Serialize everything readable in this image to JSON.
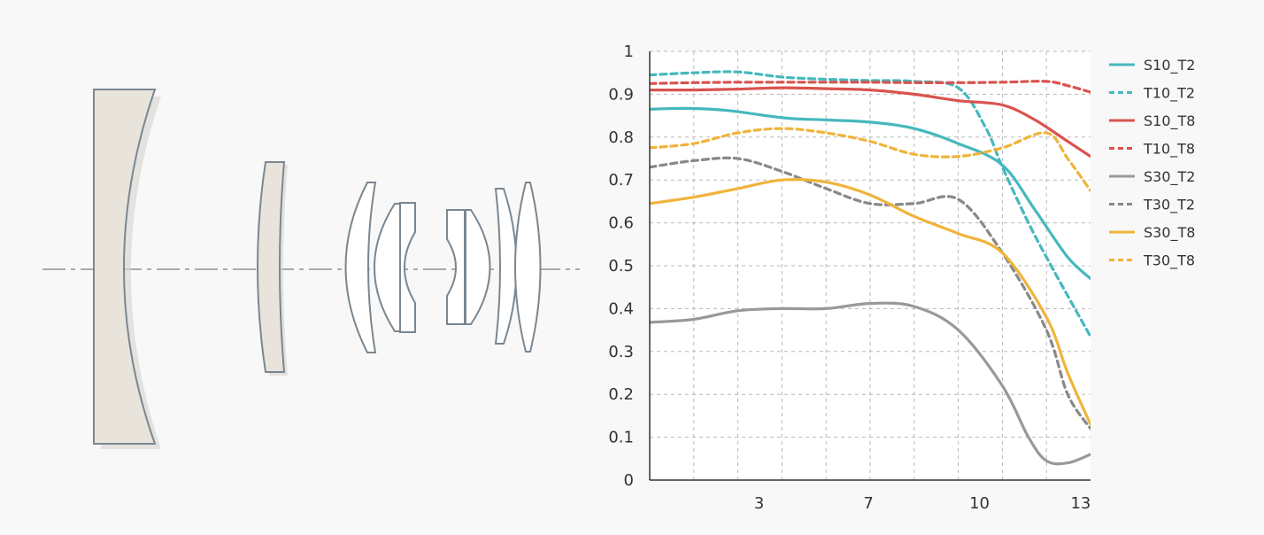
{
  "lens_diagram": {
    "name": "optical-layout",
    "element_fill": "#e8e4dc",
    "element_stroke": "#7a8791",
    "glass_fill": "#ffffff",
    "axis_color": "#9a9a9a"
  },
  "chart_data": {
    "type": "line",
    "title": "",
    "xlabel": "",
    "ylabel": "",
    "xlim": [
      0,
      13.5
    ],
    "ylim": [
      0,
      1
    ],
    "grid": true,
    "legend_position": "right",
    "x_grid": [
      1.35,
      2.7,
      4.05,
      5.4,
      6.75,
      8.1,
      9.45,
      10.8,
      12.15
    ],
    "y_ticks": [
      0,
      0.1,
      0.2,
      0.3,
      0.4,
      0.5,
      0.6,
      0.7,
      0.8,
      0.9,
      1
    ],
    "x_tick_labels": [
      {
        "value": 3.35,
        "label": "3"
      },
      {
        "value": 6.7,
        "label": "7"
      },
      {
        "value": 10.1,
        "label": "10"
      },
      {
        "value": 13.2,
        "label": "13"
      }
    ],
    "series": [
      {
        "name": "S10_T2",
        "color": "#46b8bd",
        "dashed": false,
        "points": [
          [
            0,
            0.865
          ],
          [
            1.1,
            0.867
          ],
          [
            2.4,
            0.862
          ],
          [
            4.1,
            0.845
          ],
          [
            5.4,
            0.84
          ],
          [
            6.75,
            0.835
          ],
          [
            8.1,
            0.82
          ],
          [
            9.45,
            0.785
          ],
          [
            10.8,
            0.735
          ],
          [
            11.8,
            0.63
          ],
          [
            12.8,
            0.52
          ],
          [
            13.5,
            0.47
          ]
        ]
      },
      {
        "name": "T10_T2",
        "color": "#46b8bd",
        "dashed": true,
        "points": [
          [
            0,
            0.945
          ],
          [
            1.35,
            0.95
          ],
          [
            2.7,
            0.952
          ],
          [
            4.05,
            0.94
          ],
          [
            5.4,
            0.935
          ],
          [
            6.75,
            0.932
          ],
          [
            8.1,
            0.93
          ],
          [
            9.45,
            0.915
          ],
          [
            10.3,
            0.82
          ],
          [
            10.8,
            0.73
          ],
          [
            11.6,
            0.6
          ],
          [
            12.15,
            0.52
          ],
          [
            12.8,
            0.43
          ],
          [
            13.5,
            0.335
          ]
        ]
      },
      {
        "name": "S10_T8",
        "color": "#d9534f",
        "dashed": false,
        "points": [
          [
            0,
            0.91
          ],
          [
            1.35,
            0.91
          ],
          [
            2.7,
            0.912
          ],
          [
            4.05,
            0.915
          ],
          [
            5.4,
            0.913
          ],
          [
            6.75,
            0.91
          ],
          [
            8.1,
            0.9
          ],
          [
            9.45,
            0.885
          ],
          [
            10.8,
            0.875
          ],
          [
            11.8,
            0.84
          ],
          [
            12.8,
            0.79
          ],
          [
            13.5,
            0.755
          ]
        ]
      },
      {
        "name": "T10_T8",
        "color": "#d9534f",
        "dashed": true,
        "points": [
          [
            0,
            0.925
          ],
          [
            1.35,
            0.927
          ],
          [
            2.7,
            0.928
          ],
          [
            4.05,
            0.928
          ],
          [
            5.4,
            0.928
          ],
          [
            6.75,
            0.928
          ],
          [
            8.1,
            0.927
          ],
          [
            9.45,
            0.927
          ],
          [
            10.8,
            0.928
          ],
          [
            12.15,
            0.93
          ],
          [
            12.8,
            0.92
          ],
          [
            13.5,
            0.905
          ]
        ]
      },
      {
        "name": "S30_T2",
        "color": "#999999",
        "dashed": false,
        "points": [
          [
            0,
            0.368
          ],
          [
            1.35,
            0.375
          ],
          [
            2.7,
            0.395
          ],
          [
            4.05,
            0.4
          ],
          [
            5.4,
            0.4
          ],
          [
            6.75,
            0.412
          ],
          [
            8.1,
            0.405
          ],
          [
            9.45,
            0.35
          ],
          [
            10.8,
            0.22
          ],
          [
            11.6,
            0.1
          ],
          [
            12.15,
            0.045
          ],
          [
            12.8,
            0.04
          ],
          [
            13.5,
            0.06
          ]
        ]
      },
      {
        "name": "T30_T2",
        "color": "#888888",
        "dashed": true,
        "points": [
          [
            0,
            0.73
          ],
          [
            1.35,
            0.745
          ],
          [
            2.7,
            0.75
          ],
          [
            4.05,
            0.72
          ],
          [
            5.4,
            0.68
          ],
          [
            6.75,
            0.645
          ],
          [
            8.1,
            0.645
          ],
          [
            9.45,
            0.655
          ],
          [
            10.8,
            0.53
          ],
          [
            12.15,
            0.35
          ],
          [
            12.8,
            0.2
          ],
          [
            13.5,
            0.12
          ]
        ]
      },
      {
        "name": "S30_T8",
        "color": "#f0b43a",
        "dashed": false,
        "points": [
          [
            0,
            0.645
          ],
          [
            1.35,
            0.66
          ],
          [
            2.7,
            0.68
          ],
          [
            4.05,
            0.7
          ],
          [
            5.4,
            0.695
          ],
          [
            6.75,
            0.665
          ],
          [
            8.1,
            0.615
          ],
          [
            9.45,
            0.575
          ],
          [
            10.8,
            0.53
          ],
          [
            12.15,
            0.38
          ],
          [
            12.8,
            0.25
          ],
          [
            13.5,
            0.13
          ]
        ]
      },
      {
        "name": "T30_T8",
        "color": "#f0b43a",
        "dashed": true,
        "points": [
          [
            0,
            0.775
          ],
          [
            1.35,
            0.785
          ],
          [
            2.7,
            0.81
          ],
          [
            4.05,
            0.82
          ],
          [
            5.4,
            0.81
          ],
          [
            6.75,
            0.79
          ],
          [
            8.1,
            0.76
          ],
          [
            9.45,
            0.755
          ],
          [
            10.8,
            0.775
          ],
          [
            12.15,
            0.81
          ],
          [
            12.8,
            0.75
          ],
          [
            13.5,
            0.675
          ]
        ]
      }
    ]
  }
}
